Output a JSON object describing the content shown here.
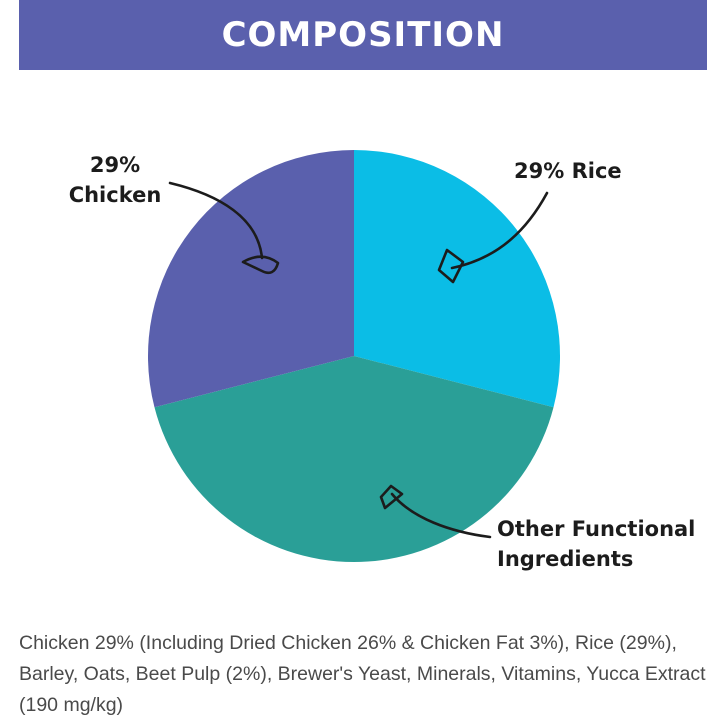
{
  "header": {
    "title": "COMPOSITION"
  },
  "chart_data": {
    "type": "pie",
    "title": "COMPOSITION",
    "slices": [
      {
        "name": "Rice",
        "value": 29,
        "label": "29% Rice",
        "color": "#0bbde6"
      },
      {
        "name": "Other Functional Ingredients",
        "value": 42,
        "label": "Other Functional Ingredients",
        "color": "#2a9f97"
      },
      {
        "name": "Chicken",
        "value": 29,
        "label_line1": "29%",
        "label_line2": "Chicken",
        "color": "#5a60ad"
      }
    ]
  },
  "footer": {
    "text": "Chicken 29% (Including Dried Chicken 26% & Chicken Fat 3%), Rice (29%), Barley, Oats, Beet Pulp (2%), Brewer's Yeast, Minerals, Vitamins, Yucca Extract (190 mg/kg)"
  },
  "colors": {
    "banner": "#5a60ad",
    "text": "#1c1c1c",
    "footer_text": "#4a4a4a"
  }
}
